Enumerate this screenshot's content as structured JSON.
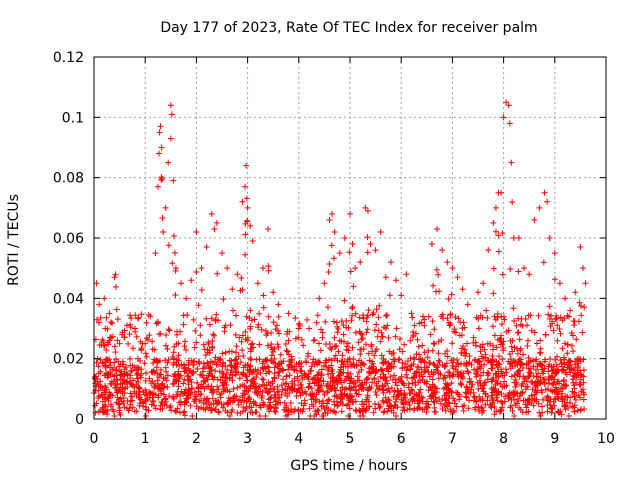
{
  "chart_data": {
    "type": "scatter",
    "title": "Day 177 of 2023, Rate Of TEC Index for receiver palm",
    "xlabel": "GPS time / hours",
    "ylabel": "ROTI / TECUs",
    "xlim": [
      0,
      10
    ],
    "ylim": [
      0,
      0.12
    ],
    "x_ticks": [
      0,
      1,
      2,
      3,
      4,
      5,
      6,
      7,
      8,
      9,
      10
    ],
    "y_ticks": [
      0,
      0.02,
      0.04,
      0.06,
      0.08,
      0.1,
      0.12
    ],
    "x_tick_labels": [
      "0",
      "1",
      "2",
      "3",
      "4",
      "5",
      "6",
      "7",
      "8",
      "9",
      "10"
    ],
    "y_tick_labels": [
      "0",
      "0.02",
      "0.04",
      "0.06",
      "0.08",
      "0.1",
      "0.12"
    ],
    "grid": true,
    "marker": "+",
    "color": "#ff0000",
    "data_extent_hours": [
      0,
      9.6
    ],
    "series": [
      {
        "name": "ROTI",
        "points": [
          [
            0.05,
            0.045
          ],
          [
            0.1,
            0.038
          ],
          [
            0.2,
            0.04
          ],
          [
            0.3,
            0.035
          ],
          [
            0.4,
            0.047
          ],
          [
            0.42,
            0.048
          ],
          [
            0.5,
            0.025
          ],
          [
            0.6,
            0.027
          ],
          [
            0.8,
            0.03
          ],
          [
            1.0,
            0.025
          ],
          [
            1.1,
            0.034
          ],
          [
            1.2,
            0.055
          ],
          [
            1.25,
            0.077
          ],
          [
            1.27,
            0.088
          ],
          [
            1.28,
            0.095
          ],
          [
            1.3,
            0.097
          ],
          [
            1.32,
            0.09
          ],
          [
            1.35,
            0.062
          ],
          [
            1.4,
            0.07
          ],
          [
            1.45,
            0.085
          ],
          [
            1.5,
            0.104
          ],
          [
            1.52,
            0.101
          ],
          [
            1.55,
            0.079
          ],
          [
            1.5,
            0.093
          ],
          [
            1.6,
            0.05
          ],
          [
            1.7,
            0.045
          ],
          [
            1.8,
            0.04
          ],
          [
            1.9,
            0.046
          ],
          [
            2.0,
            0.062
          ],
          [
            2.1,
            0.05
          ],
          [
            2.2,
            0.057
          ],
          [
            2.3,
            0.068
          ],
          [
            2.35,
            0.063
          ],
          [
            2.4,
            0.065
          ],
          [
            2.5,
            0.055
          ],
          [
            2.6,
            0.05
          ],
          [
            2.7,
            0.043
          ],
          [
            2.8,
            0.048
          ],
          [
            2.9,
            0.072
          ],
          [
            2.95,
            0.077
          ],
          [
            2.97,
            0.084
          ],
          [
            3.0,
            0.07
          ],
          [
            3.05,
            0.064
          ],
          [
            3.1,
            0.059
          ],
          [
            3.2,
            0.045
          ],
          [
            3.3,
            0.05
          ],
          [
            3.4,
            0.063
          ],
          [
            3.5,
            0.042
          ],
          [
            3.6,
            0.038
          ],
          [
            3.8,
            0.035
          ],
          [
            4.0,
            0.03
          ],
          [
            4.2,
            0.03
          ],
          [
            4.4,
            0.04
          ],
          [
            4.5,
            0.045
          ],
          [
            4.6,
            0.066
          ],
          [
            4.65,
            0.068
          ],
          [
            4.7,
            0.062
          ],
          [
            4.8,
            0.055
          ],
          [
            4.9,
            0.06
          ],
          [
            5.0,
            0.068
          ],
          [
            5.05,
            0.058
          ],
          [
            5.1,
            0.05
          ],
          [
            5.2,
            0.052
          ],
          [
            5.3,
            0.07
          ],
          [
            5.35,
            0.069
          ],
          [
            5.4,
            0.058
          ],
          [
            5.5,
            0.056
          ],
          [
            5.6,
            0.062
          ],
          [
            5.7,
            0.047
          ],
          [
            5.8,
            0.052
          ],
          [
            5.9,
            0.046
          ],
          [
            6.0,
            0.041
          ],
          [
            6.1,
            0.048
          ],
          [
            6.2,
            0.035
          ],
          [
            6.4,
            0.032
          ],
          [
            6.6,
            0.058
          ],
          [
            6.7,
            0.063
          ],
          [
            6.8,
            0.056
          ],
          [
            6.9,
            0.052
          ],
          [
            7.0,
            0.05
          ],
          [
            7.1,
            0.047
          ],
          [
            7.2,
            0.043
          ],
          [
            7.3,
            0.038
          ],
          [
            7.5,
            0.042
          ],
          [
            7.6,
            0.045
          ],
          [
            7.7,
            0.056
          ],
          [
            7.8,
            0.065
          ],
          [
            7.85,
            0.07
          ],
          [
            7.9,
            0.075
          ],
          [
            7.95,
            0.075
          ],
          [
            8.0,
            0.1
          ],
          [
            8.05,
            0.105
          ],
          [
            8.1,
            0.104
          ],
          [
            8.12,
            0.098
          ],
          [
            8.15,
            0.085
          ],
          [
            8.2,
            0.06
          ],
          [
            8.3,
            0.06
          ],
          [
            8.4,
            0.05
          ],
          [
            8.5,
            0.048
          ],
          [
            8.6,
            0.066
          ],
          [
            8.7,
            0.07
          ],
          [
            8.8,
            0.075
          ],
          [
            8.85,
            0.072
          ],
          [
            8.9,
            0.06
          ],
          [
            9.0,
            0.055
          ],
          [
            9.1,
            0.045
          ],
          [
            9.2,
            0.04
          ],
          [
            9.3,
            0.036
          ],
          [
            9.4,
            0.042
          ],
          [
            9.5,
            0.057
          ],
          [
            9.55,
            0.05
          ],
          [
            9.6,
            0.045
          ]
        ]
      }
    ]
  }
}
